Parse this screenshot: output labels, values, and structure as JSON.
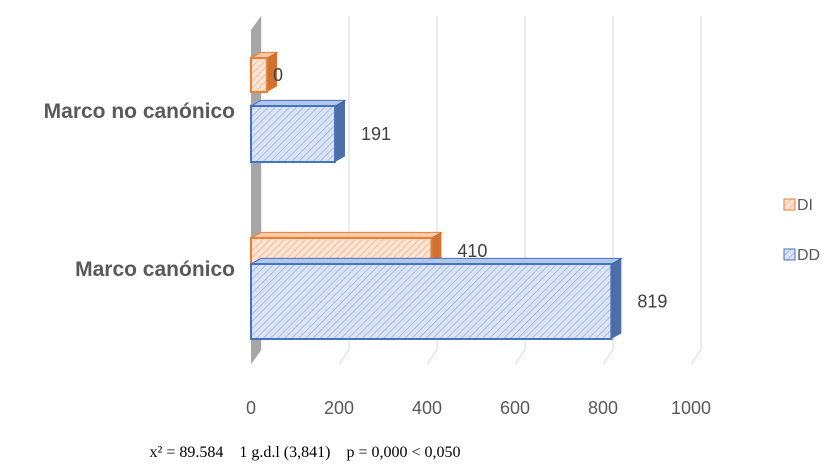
{
  "chart_data": {
    "type": "bar",
    "orientation": "horizontal",
    "categories": [
      "Marco no canónico",
      "Marco canónico"
    ],
    "series": [
      {
        "name": "DI",
        "values": [
          0,
          410
        ],
        "color": "#ED7D31"
      },
      {
        "name": "DD",
        "values": [
          191,
          819
        ],
        "color": "#4472C4"
      }
    ],
    "xlim": [
      0,
      1000
    ],
    "xticks": [
      0,
      200,
      400,
      600,
      800,
      1000
    ],
    "grid": true,
    "legend_position": "right",
    "pattern": "diagonal-hatch"
  },
  "stats_text": "x² = 89.584    1 g.d.l (3,841)    p = 0,000 < 0,050"
}
